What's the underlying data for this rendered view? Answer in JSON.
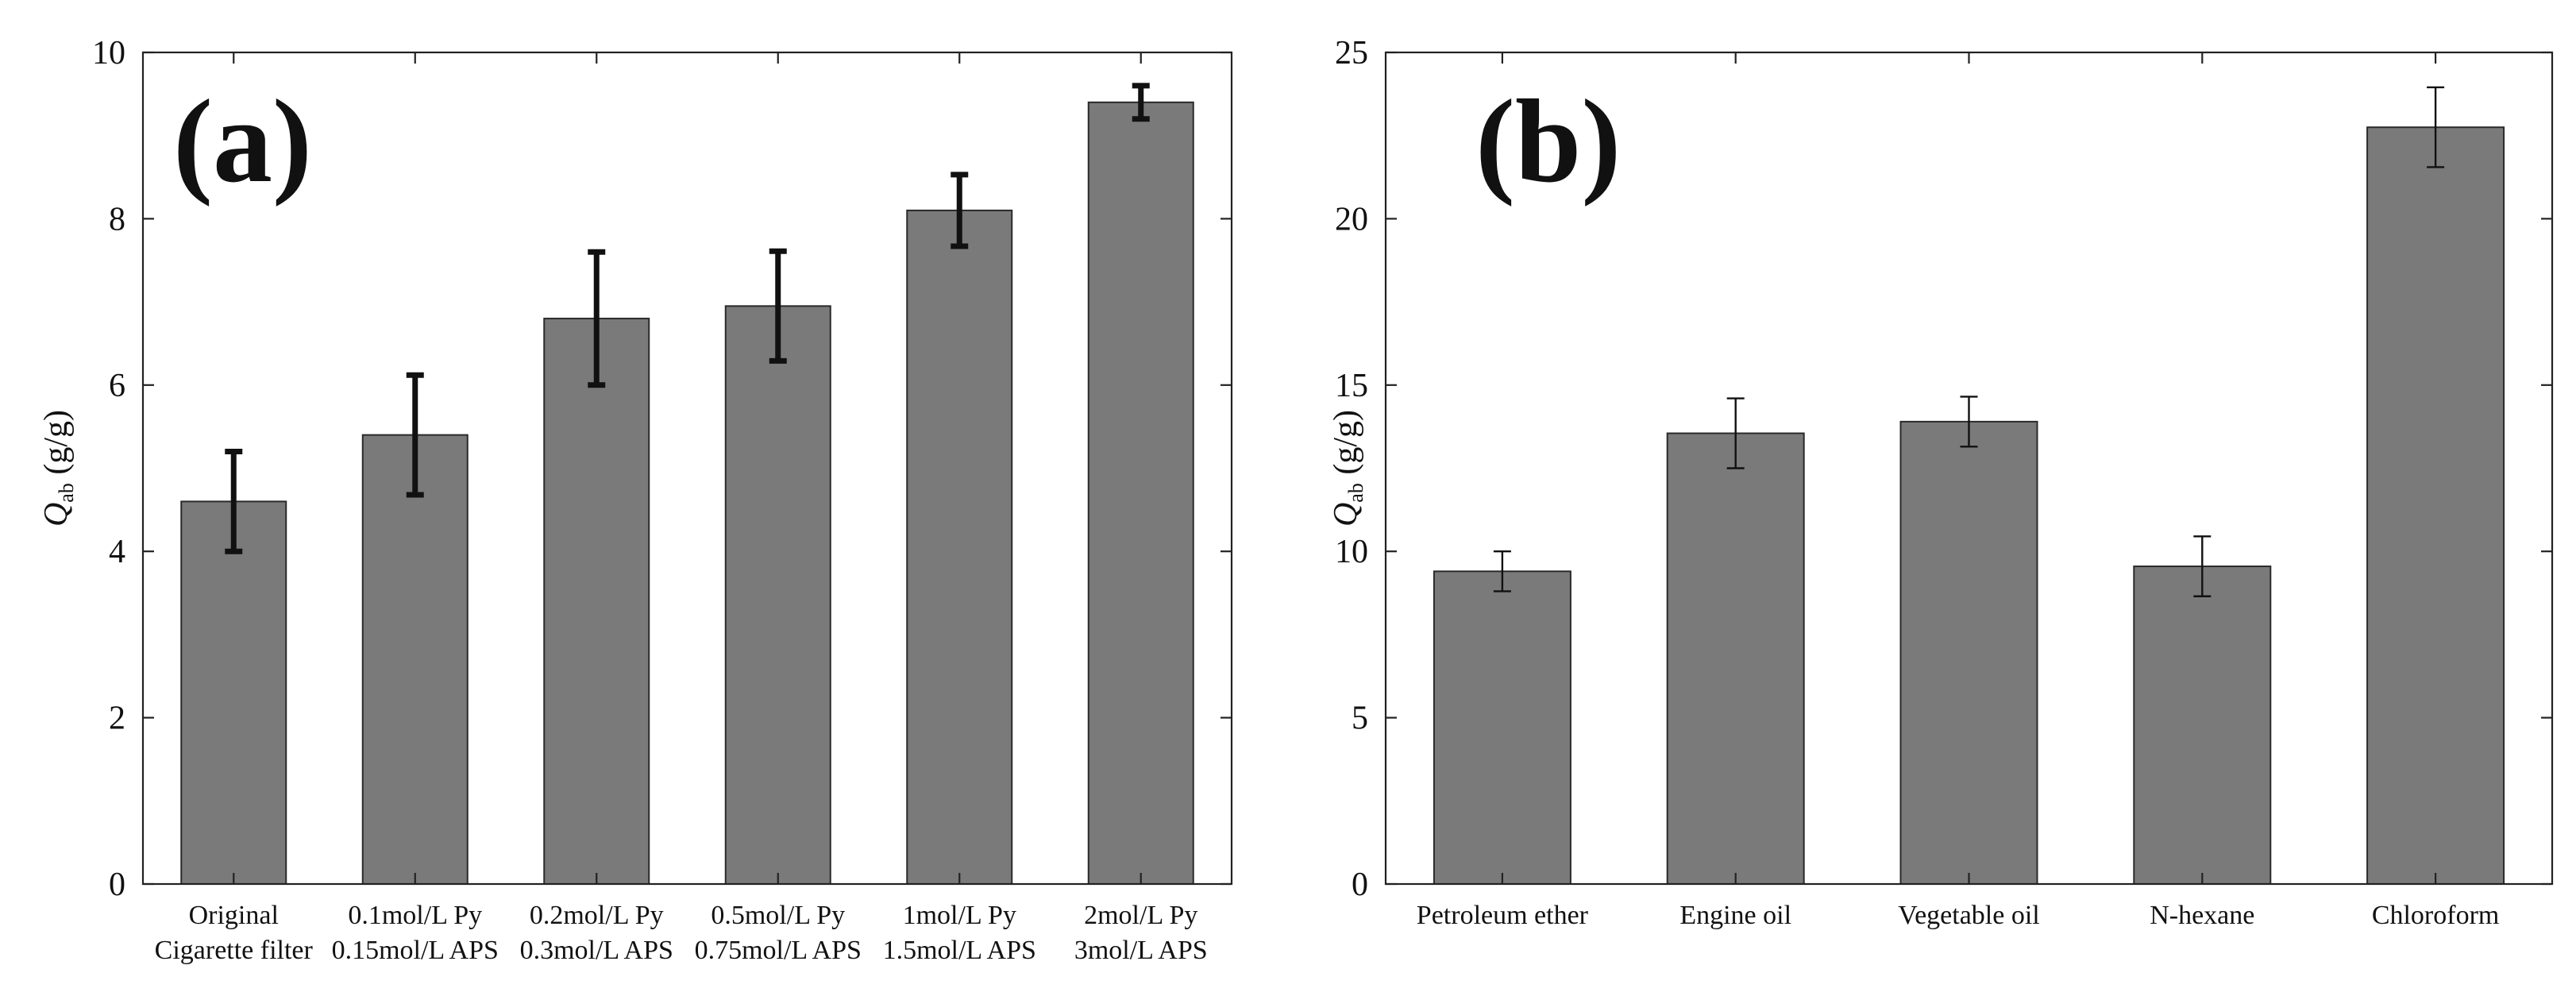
{
  "chart_data": [
    {
      "panel": "(a)",
      "type": "bar",
      "ylabel_main": "Q",
      "ylabel_sub": "ab",
      "ylabel_units": "(g/g)",
      "ylim": [
        0,
        10
      ],
      "yticks": [
        0,
        2,
        4,
        6,
        8,
        10
      ],
      "categories": [
        [
          "Original",
          "Cigarette filter"
        ],
        [
          "0.1mol/L Py",
          "0.15mol/L APS"
        ],
        [
          "0.2mol/L Py",
          "0.3mol/L APS"
        ],
        [
          "0.5mol/L Py",
          "0.75mol/L APS"
        ],
        [
          "1mol/L Py",
          "1.5mol/L APS"
        ],
        [
          "2mol/L Py",
          "3mol/L APS"
        ]
      ],
      "values": [
        4.6,
        5.4,
        6.8,
        6.95,
        8.1,
        9.4
      ],
      "errors": [
        0.6,
        0.72,
        0.8,
        0.66,
        0.43,
        0.2
      ],
      "bar_color": "#7a7a7a",
      "error_style": "bold"
    },
    {
      "panel": "(b)",
      "type": "bar",
      "ylabel_main": "Q",
      "ylabel_sub": "ab",
      "ylabel_units": "(g/g)",
      "ylim": [
        0,
        25
      ],
      "yticks": [
        0,
        5,
        10,
        15,
        20,
        25
      ],
      "categories": [
        [
          "Petroleum ether"
        ],
        [
          "Engine oil"
        ],
        [
          "Vegetable oil"
        ],
        [
          "N-hexane"
        ],
        [
          "Chloroform"
        ]
      ],
      "values": [
        9.4,
        13.55,
        13.9,
        9.55,
        22.75
      ],
      "errors": [
        0.6,
        1.05,
        0.75,
        0.9,
        1.2
      ],
      "bar_color": "#7a7a7a",
      "error_style": "thin"
    }
  ]
}
